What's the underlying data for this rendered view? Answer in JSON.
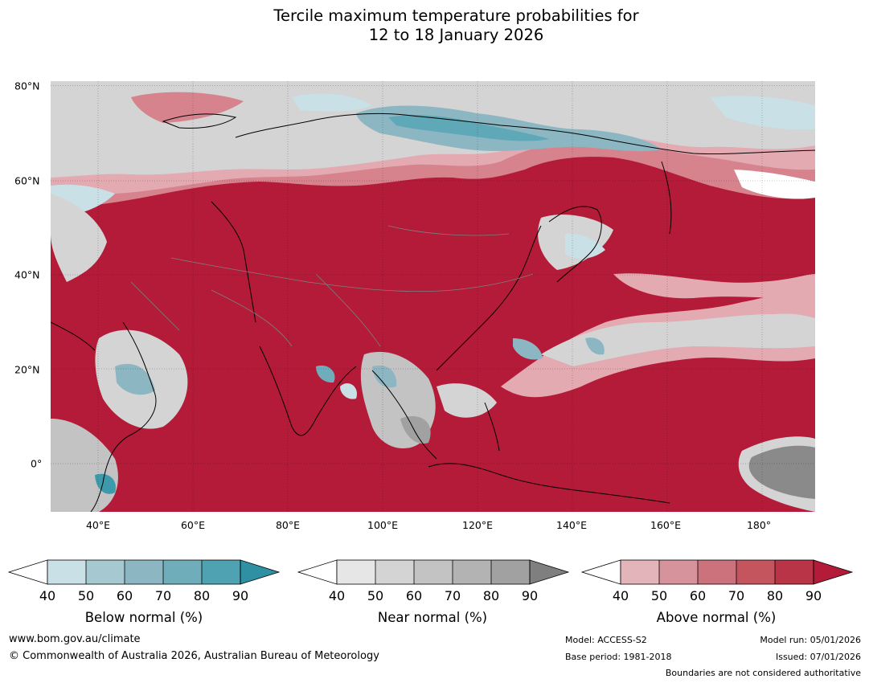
{
  "title": {
    "line1": "Tercile maximum temperature probabilities for",
    "line2": "12 to 18 January 2026"
  },
  "map": {
    "lat_labels": [
      "80°N",
      "60°N",
      "40°N",
      "20°N",
      "0°"
    ],
    "lon_labels": [
      "40°E",
      "60°E",
      "80°E",
      "100°E",
      "120°E",
      "140°E",
      "160°E",
      "180°"
    ],
    "lat_range": [
      -10,
      80
    ],
    "lon_range": [
      30,
      191
    ],
    "colors": {
      "above_90": "#b31b38",
      "above_80": "#c23a4f",
      "above_70": "#cd5e6b",
      "above_60": "#d7838e",
      "above_50": "#e3aab1",
      "near_40": "#e6e6e6",
      "near_50": "#d4d4d4",
      "near_60": "#c3c3c3",
      "near_80": "#8a8a8a",
      "below_40": "#c8e0e6",
      "below_60": "#8cb7c2",
      "below_80": "#3d9aab",
      "land_outline": "#000000",
      "border": "#808080"
    }
  },
  "colorbars": [
    {
      "title": "Below normal (%)",
      "ticks": [
        "40",
        "50",
        "60",
        "70",
        "80",
        "90"
      ],
      "colors": [
        "#c8e0e6",
        "#a6c8d0",
        "#8cb7c2",
        "#6fadba",
        "#4ea2b2",
        "#2f8fa3"
      ]
    },
    {
      "title": "Near normal (%)",
      "ticks": [
        "40",
        "50",
        "60",
        "70",
        "80",
        "90"
      ],
      "colors": [
        "#e6e6e6",
        "#d4d4d4",
        "#c3c3c3",
        "#b3b3b3",
        "#a1a1a1",
        "#7f7f7f"
      ]
    },
    {
      "title": "Above normal (%)",
      "ticks": [
        "40",
        "50",
        "60",
        "70",
        "80",
        "90"
      ],
      "colors": [
        "#e3b5bb",
        "#d6939b",
        "#cc727d",
        "#c4555f",
        "#b93446",
        "#b31b38"
      ]
    }
  ],
  "footer": {
    "website": "www.bom.gov.au/climate",
    "copyright": "© Commonwealth of Australia 2026, Australian Bureau of Meteorology",
    "model": "Model: ACCESS-S2",
    "base_period": "Base period: 1981-2018",
    "model_run": "Model run: 05/01/2026",
    "issued": "Issued: 07/01/2026",
    "disclaimer": "Boundaries are not considered authoritative"
  }
}
